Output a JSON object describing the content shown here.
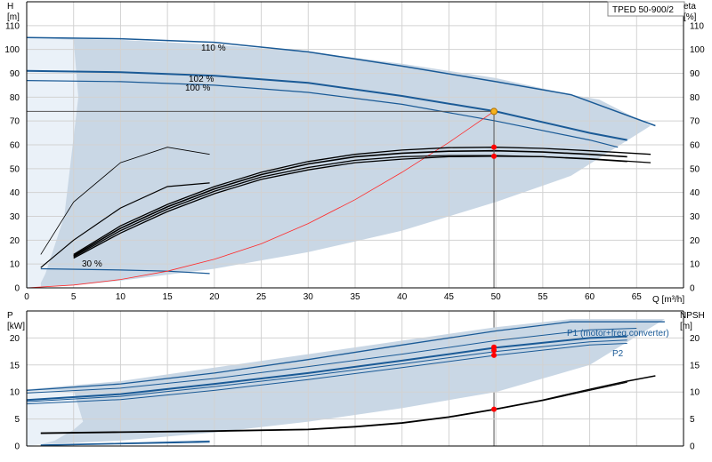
{
  "chart_data": [
    {
      "type": "line",
      "model": "TPED 50-900/2",
      "ylabel": "H\n[m]",
      "ylabel_right": "eta\n[%]",
      "xlabel": "Q [m³/h]",
      "xlim": [
        0,
        70
      ],
      "ylim": [
        0,
        120
      ],
      "x_ticks": [
        0,
        5,
        10,
        15,
        20,
        25,
        30,
        35,
        40,
        45,
        50,
        55,
        60,
        65
      ],
      "y_ticks": [
        0,
        10,
        20,
        30,
        40,
        50,
        60,
        70,
        80,
        90,
        100,
        110
      ],
      "annotations": [
        "110 %",
        "102 %",
        "100 %",
        "30 %"
      ],
      "duty_point": {
        "Q": 49.8,
        "H": 74
      },
      "bands": {
        "operating_area_outer": [
          [
            1.5,
            0.5
          ],
          [
            5,
            1
          ],
          [
            10,
            3
          ],
          [
            20,
            8
          ],
          [
            30,
            15
          ],
          [
            40,
            24
          ],
          [
            50,
            36
          ],
          [
            58,
            47
          ],
          [
            66.5,
            68
          ],
          [
            61,
            79
          ],
          [
            58,
            81
          ],
          [
            50,
            88
          ],
          [
            40,
            94
          ],
          [
            30,
            99
          ],
          [
            20,
            102
          ],
          [
            10,
            104
          ],
          [
            0,
            105
          ]
        ],
        "operating_area_inner": [
          [
            1.5,
            0.5
          ],
          [
            1.5,
            2
          ],
          [
            2,
            6
          ],
          [
            4,
            30
          ],
          [
            5.5,
            80
          ],
          [
            5,
            104
          ],
          [
            0,
            105
          ],
          [
            0,
            0
          ]
        ],
        "eta_band": [
          [
            1.5,
            8
          ],
          [
            5,
            8
          ],
          [
            10,
            7
          ],
          [
            19.5,
            6
          ],
          [
            19.5,
            6
          ],
          [
            10,
            6
          ],
          [
            5,
            6
          ],
          [
            1.5,
            6
          ]
        ]
      },
      "series": [
        {
          "name": "110 %",
          "x": [
            0,
            10,
            20,
            30,
            40,
            50,
            58,
            67
          ],
          "y": [
            105,
            104.5,
            103,
            99,
            93,
            86.5,
            81,
            68
          ]
        },
        {
          "name": "102 %",
          "x": [
            0,
            10,
            20,
            30,
            40,
            50,
            60,
            64
          ],
          "y": [
            91,
            90.5,
            89,
            86,
            80.5,
            74,
            65,
            62
          ]
        },
        {
          "name": "100 %",
          "x": [
            0,
            10,
            20,
            30,
            40,
            50,
            60,
            63
          ],
          "y": [
            87,
            86.5,
            85,
            82,
            77,
            70,
            62,
            59
          ]
        },
        {
          "name": "30 %",
          "x": [
            1.5,
            10,
            15,
            19.5
          ],
          "y": [
            8,
            7.5,
            7,
            6
          ]
        },
        {
          "name": "system",
          "x": [
            0,
            5,
            10,
            15,
            20,
            25,
            30,
            35,
            40,
            45,
            49.8
          ],
          "y": [
            0,
            1.2,
            3.5,
            7,
            12,
            18.5,
            27,
            37,
            48.5,
            61,
            74
          ]
        },
        {
          "name": "eta_a",
          "x": [
            5,
            10,
            15,
            20,
            25,
            30,
            35,
            40,
            45,
            50,
            55,
            60,
            66.5
          ],
          "y": [
            14,
            26,
            35,
            42.5,
            48.5,
            53,
            56,
            57.8,
            58.8,
            59,
            58.5,
            57.5,
            56
          ]
        },
        {
          "name": "eta_b",
          "x": [
            5,
            10,
            15,
            20,
            25,
            30,
            35,
            40,
            45,
            50,
            55,
            60,
            64
          ],
          "y": [
            13.5,
            25,
            34,
            41.5,
            47.5,
            52,
            55,
            56.5,
            57.3,
            57.5,
            57,
            56,
            55
          ]
        },
        {
          "name": "eta_c",
          "x": [
            5,
            10,
            15,
            20,
            25,
            30,
            35,
            40,
            45,
            50,
            55,
            60,
            64
          ],
          "y": [
            13,
            24,
            33,
            40.5,
            46.5,
            50.5,
            53.5,
            55,
            55.5,
            55.5,
            55,
            54,
            53
          ]
        },
        {
          "name": "eta_d",
          "x": [
            5,
            10,
            15,
            20,
            25,
            30,
            35,
            40,
            45,
            50,
            55,
            60,
            66.5
          ],
          "y": [
            12.5,
            23,
            32,
            39.5,
            45.5,
            49.5,
            52.5,
            54,
            55,
            55.2,
            55,
            54.2,
            52.5
          ]
        },
        {
          "name": "eta_e",
          "x": [
            1.5,
            5,
            10,
            15,
            19.5
          ],
          "y": [
            8.5,
            20,
            33.5,
            42.5,
            44
          ]
        },
        {
          "name": "eta_f",
          "x": [
            1.5,
            5,
            10,
            15,
            19.5
          ],
          "y": [
            14,
            36,
            52.5,
            59,
            56
          ]
        }
      ],
      "points": [
        {
          "Q": 49.8,
          "H": 74,
          "color": "#f6b21c"
        },
        {
          "Q": 49.8,
          "H": 59,
          "color": "#ff0000"
        },
        {
          "Q": 49.8,
          "H": 55.2,
          "color": "#ff0000"
        }
      ]
    },
    {
      "type": "line",
      "ylabel": "P\n[kW]",
      "ylabel_right": "NPSH\n[m]",
      "xlim": [
        0,
        70
      ],
      "ylim": [
        0,
        25
      ],
      "y_ticks": [
        0,
        5,
        10,
        15,
        20
      ],
      "legend": [
        "P1 (motor+freq.converter)",
        "P2"
      ],
      "bands": {
        "power_area": [
          [
            1.5,
            0.3
          ],
          [
            10,
            1
          ],
          [
            20,
            2.5
          ],
          [
            30,
            4.5
          ],
          [
            40,
            7
          ],
          [
            50,
            10
          ],
          [
            60,
            15
          ],
          [
            68,
            23.5
          ],
          [
            58,
            23.5
          ],
          [
            50,
            22
          ],
          [
            40,
            19.5
          ],
          [
            30,
            17
          ],
          [
            20,
            14.5
          ],
          [
            10,
            12
          ],
          [
            0,
            10.5
          ]
        ],
        "inner_area": [
          [
            1.5,
            0.3
          ],
          [
            3,
            1
          ],
          [
            4,
            2
          ],
          [
            5,
            3
          ],
          [
            6,
            4.5
          ],
          [
            5,
            10.3
          ],
          [
            0,
            10.3
          ],
          [
            0,
            0
          ]
        ]
      },
      "series": [
        {
          "name": "P1 (motor+freq.converter)",
          "x": [
            0,
            10,
            20,
            30,
            40,
            50,
            58,
            68
          ],
          "y": [
            10.3,
            11.5,
            13.5,
            16,
            18.7,
            21.3,
            23,
            23
          ]
        },
        {
          "name": "P1_inner",
          "x": [
            0,
            10,
            20,
            30,
            40,
            50,
            60,
            65
          ],
          "y": [
            9.8,
            10.7,
            12.5,
            14.7,
            17,
            19.5,
            21.5,
            21.8
          ]
        },
        {
          "name": "P2",
          "x": [
            0,
            10,
            20,
            30,
            40,
            50,
            60,
            64
          ],
          "y": [
            8.5,
            9.6,
            11.5,
            13.5,
            15.8,
            18.2,
            20,
            20.3
          ]
        },
        {
          "name": "P2_a",
          "x": [
            0,
            10,
            20,
            30,
            40,
            50,
            60,
            64
          ],
          "y": [
            8.2,
            9.2,
            11,
            13,
            15.2,
            17.5,
            19.3,
            19.6
          ]
        },
        {
          "name": "P2_b",
          "x": [
            0,
            10,
            20,
            30,
            40,
            50,
            60,
            64
          ],
          "y": [
            7.8,
            8.6,
            10.3,
            12.3,
            14.5,
            16.8,
            18.7,
            19
          ]
        },
        {
          "name": "NPSH",
          "x": [
            1.5,
            10,
            20,
            30,
            35,
            40,
            45,
            49.8,
            55,
            60,
            64,
            67
          ],
          "y": [
            2.4,
            2.6,
            2.8,
            3.1,
            3.6,
            4.3,
            5.4,
            6.8,
            8.5,
            10.5,
            12,
            13
          ]
        },
        {
          "name": "NPSH_b",
          "x": [
            1.5,
            10,
            20,
            30,
            35,
            40,
            45,
            49.8,
            55,
            60,
            64
          ],
          "y": [
            2.3,
            2.5,
            2.7,
            3,
            3.5,
            4.2,
            5.3,
            6.7,
            8.4,
            10.3,
            11.8
          ]
        },
        {
          "name": "P_30",
          "x": [
            1.5,
            10,
            19.5
          ],
          "y": [
            0.2,
            0.5,
            0.9
          ]
        },
        {
          "name": "P_30b",
          "x": [
            1.5,
            10,
            19.5
          ],
          "y": [
            0.1,
            0.4,
            0.7
          ]
        }
      ],
      "points": [
        {
          "Q": 49.8,
          "P": 18.3,
          "color": "#ff0000"
        },
        {
          "Q": 49.8,
          "P": 17.7,
          "color": "#ff0000"
        },
        {
          "Q": 49.8,
          "P": 16.8,
          "color": "#ff0000"
        },
        {
          "Q": 49.8,
          "P": 6.8,
          "color": "#ff0000"
        }
      ]
    }
  ]
}
